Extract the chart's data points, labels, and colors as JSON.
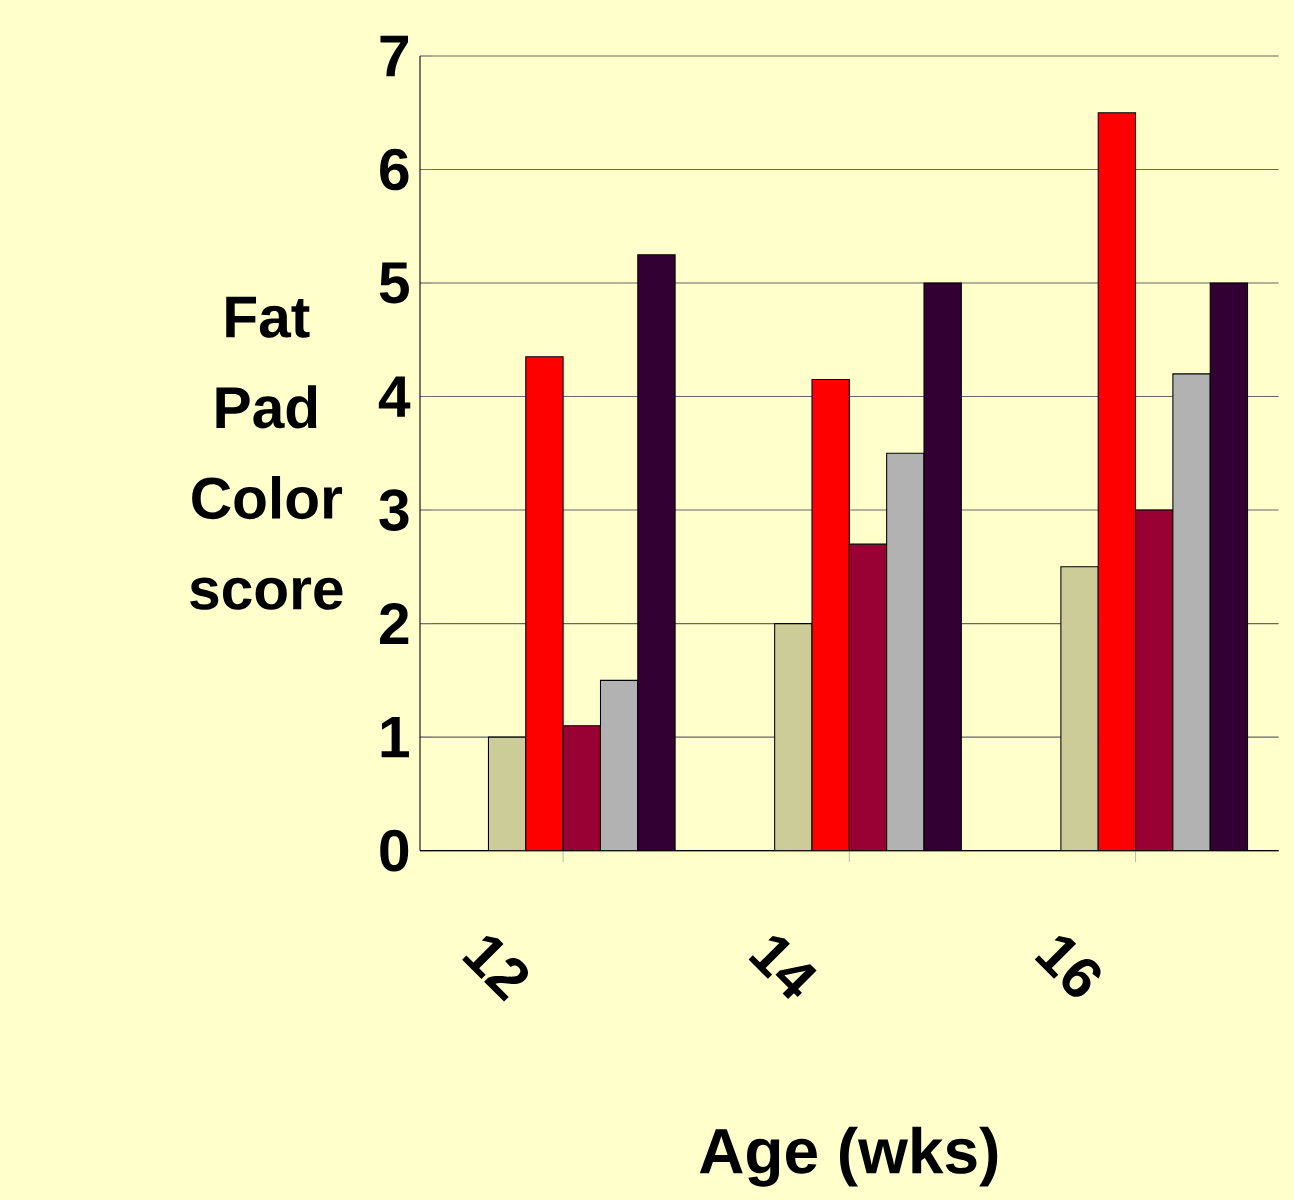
{
  "chart_data": {
    "type": "bar",
    "xlabel": "Age (wks)",
    "ylabel": "Fat Pad Color score",
    "categories": [
      "12",
      "14",
      "16"
    ],
    "series": [
      {
        "color": "#999999",
        "values": [
          0,
          0,
          0
        ]
      },
      {
        "color": "#cccc99",
        "values": [
          1.0,
          2.0,
          2.5
        ]
      },
      {
        "color": "#ff0000",
        "values": [
          4.35,
          4.15,
          6.5
        ]
      },
      {
        "color": "#990033",
        "values": [
          1.1,
          2.7,
          3.0
        ]
      },
      {
        "color": "#b2b2b2",
        "values": [
          1.5,
          3.5,
          4.2
        ]
      },
      {
        "color": "#330033",
        "values": [
          5.25,
          5.0,
          5.0
        ]
      }
    ],
    "ylim": [
      0,
      7
    ],
    "yticks": [
      0,
      1,
      2,
      3,
      4,
      5,
      6,
      7
    ],
    "grid": "y"
  }
}
